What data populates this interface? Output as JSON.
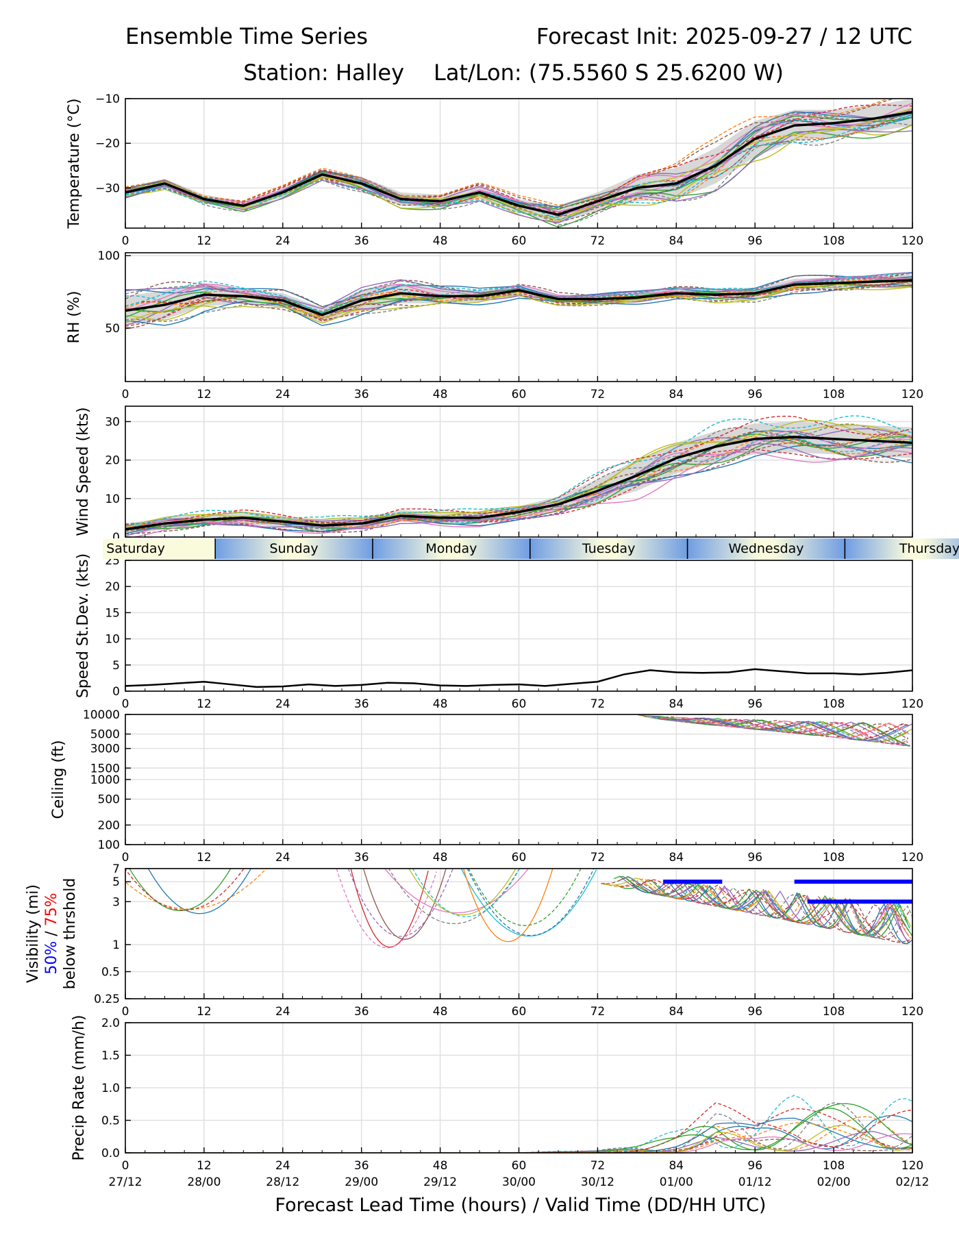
{
  "header": {
    "title_left": "Ensemble Time Series",
    "title_right": "Forecast Init: 2025-09-27 / 12 UTC",
    "station": "Station: Halley",
    "latlon": "Lat/Lon: (75.5560 S 25.6200 W)"
  },
  "xaxis": {
    "ticks": [
      0,
      12,
      24,
      36,
      48,
      60,
      72,
      84,
      96,
      108,
      120
    ],
    "valid_times": [
      "27/12",
      "28/00",
      "28/12",
      "29/00",
      "29/12",
      "30/00",
      "30/12",
      "01/00",
      "01/12",
      "02/00",
      "02/12"
    ],
    "label": "Forecast Lead Time (hours) / Valid Time (DD/HH UTC)"
  },
  "day_strip": {
    "days": [
      "Saturday",
      "Sunday",
      "Monday",
      "Tuesday",
      "Wednesday",
      "Thursday"
    ],
    "boundaries_hours": [
      13.7,
      37.7,
      61.7,
      85.7,
      109.7
    ],
    "colors": {
      "light": "#fafbdc",
      "dark": "#6f9de3"
    }
  },
  "colors": {
    "mean": "#000000",
    "spread": "#c8c8c8",
    "vis_50": "#0000ff",
    "vis_75": "#ff0000",
    "grid": "#e0e0e0",
    "members": [
      "#1f77b4",
      "#ff7f0e",
      "#2ca02c",
      "#d62728",
      "#9467bd",
      "#8c564b",
      "#e377c2",
      "#7f7f7f",
      "#bcbd22",
      "#17becf"
    ]
  },
  "chart_data": [
    {
      "type": "line",
      "title": "Temperature",
      "ylabel": "Temperature (°C)",
      "ylim": [
        -39,
        -10
      ],
      "yticks": [
        -10,
        -20,
        -30
      ],
      "ytick_labels": [
        "−10",
        "−20",
        "−30"
      ],
      "x": [
        0,
        6,
        12,
        18,
        24,
        30,
        36,
        42,
        48,
        54,
        60,
        66,
        72,
        78,
        84,
        90,
        96,
        102,
        108,
        114,
        120
      ],
      "mean": [
        -31,
        -29,
        -32.5,
        -34,
        -31,
        -27,
        -29,
        -32.5,
        -33,
        -31,
        -34,
        -36,
        -33,
        -30,
        -29,
        -25,
        -19,
        -16,
        -15.5,
        -14.5,
        -13
      ],
      "spread_halfwidth": [
        1,
        1,
        1,
        1,
        1,
        1,
        1.5,
        1.5,
        1.5,
        1.5,
        1.5,
        2,
        2,
        3,
        3.5,
        4,
        4,
        3.5,
        3,
        3,
        3
      ]
    },
    {
      "type": "line",
      "title": "Relative Humidity",
      "ylabel": "RH (%)",
      "ylim": [
        13,
        102
      ],
      "yticks": [
        50,
        100
      ],
      "ytick_labels": [
        "50",
        "100"
      ],
      "x": [
        0,
        6,
        12,
        18,
        24,
        30,
        36,
        42,
        48,
        54,
        60,
        66,
        72,
        78,
        84,
        90,
        96,
        102,
        108,
        114,
        120
      ],
      "mean": [
        62,
        66,
        73,
        72,
        69,
        59,
        69,
        74,
        72,
        72,
        76,
        70,
        70,
        71,
        74,
        73,
        74,
        80,
        81,
        82,
        83
      ],
      "spread_halfwidth": [
        10,
        10,
        8,
        5,
        5,
        5,
        7,
        7,
        5,
        4,
        4,
        3,
        3,
        3,
        3,
        4,
        4,
        4,
        4,
        4,
        4
      ]
    },
    {
      "type": "line",
      "title": "Wind Speed",
      "ylabel": "Wind Speed (kts)",
      "ylim": [
        0,
        34
      ],
      "yticks": [
        0,
        10,
        20,
        30
      ],
      "ytick_labels": [
        "0",
        "10",
        "20",
        "30"
      ],
      "x": [
        0,
        6,
        12,
        18,
        24,
        30,
        36,
        42,
        48,
        54,
        60,
        66,
        72,
        78,
        84,
        90,
        96,
        102,
        108,
        114,
        120
      ],
      "mean": [
        2,
        3.5,
        4.5,
        5,
        4,
        3,
        3.5,
        5.5,
        5,
        5,
        6.5,
        8.5,
        12,
        16,
        20.5,
        23.5,
        25.5,
        26,
        25.5,
        25,
        24.5
      ],
      "spread_halfwidth": [
        1.5,
        1.5,
        1.5,
        1.5,
        1.5,
        1.5,
        1.5,
        1.5,
        1.5,
        1.5,
        1.5,
        2,
        3,
        4,
        4,
        4,
        4,
        4,
        4,
        4,
        4
      ]
    },
    {
      "type": "line",
      "title": "Speed Standard Deviation",
      "ylabel": "Speed St.Dev. (kts)",
      "ylim": [
        0,
        25
      ],
      "yticks": [
        0,
        5,
        10,
        15,
        20,
        25
      ],
      "ytick_labels": [
        "0",
        "5",
        "10",
        "15",
        "20",
        "25"
      ],
      "x": [
        0,
        4,
        8,
        12,
        16,
        20,
        24,
        28,
        32,
        36,
        40,
        44,
        48,
        52,
        56,
        60,
        64,
        68,
        72,
        76,
        80,
        84,
        88,
        92,
        96,
        100,
        104,
        108,
        112,
        116,
        120
      ],
      "values": [
        1,
        1.2,
        1.5,
        1.8,
        1.3,
        0.8,
        0.9,
        1.3,
        1.0,
        1.2,
        1.6,
        1.5,
        1.1,
        1.0,
        1.2,
        1.3,
        1.0,
        1.4,
        1.8,
        3.2,
        4.0,
        3.6,
        3.5,
        3.6,
        4.2,
        3.8,
        3.4,
        3.4,
        3.2,
        3.5,
        4.0
      ]
    },
    {
      "type": "line",
      "title": "Ceiling",
      "ylabel": "Ceiling (ft)",
      "scale": "log",
      "ylim": [
        100,
        10000
      ],
      "yticks": [
        100,
        200,
        500,
        1000,
        1500,
        3000,
        5000,
        10000
      ],
      "ytick_labels": [
        "100",
        "200",
        "500",
        "1000",
        "1500",
        "3000",
        "5000",
        "10000"
      ],
      "member_range_hours": [
        78,
        120
      ],
      "member_min_ft": [
        3200,
        9500
      ]
    },
    {
      "type": "line",
      "title": "Visibility",
      "ylabel": "Visibility (mi)",
      "ylabel_threshold": {
        "p50": "50%",
        "sep": " / ",
        "p75": "75%",
        "rest": "below thrshold"
      },
      "scale": "log",
      "ylim": [
        0.25,
        7
      ],
      "yticks": [
        0.25,
        0.5,
        1,
        3,
        5,
        7
      ],
      "ytick_labels": [
        "0.25",
        "0.5",
        "1",
        "3",
        "5",
        "7"
      ],
      "threshold_bars": [
        {
          "start": 82,
          "end": 91,
          "level": 5,
          "pct": "50%"
        },
        {
          "start": 102,
          "end": 120,
          "level": 5,
          "pct": "50%"
        },
        {
          "start": 104,
          "end": 120,
          "level": 3,
          "pct": "50%"
        }
      ]
    },
    {
      "type": "line",
      "title": "Precipitation Rate",
      "ylabel": "Precip Rate (mm/h)",
      "ylim": [
        0,
        2
      ],
      "yticks": [
        0,
        0.5,
        1,
        1.5,
        2
      ],
      "ytick_labels": [
        "0.0",
        "0.5",
        "1.0",
        "1.5",
        "2.0"
      ],
      "x": [
        0,
        60,
        72,
        78,
        84,
        90,
        96,
        102,
        108,
        114,
        120
      ],
      "member_max": [
        0,
        0,
        0.05,
        0.15,
        0.35,
        0.8,
        0.6,
        0.9,
        1.0,
        1.1,
        0.8
      ]
    }
  ]
}
